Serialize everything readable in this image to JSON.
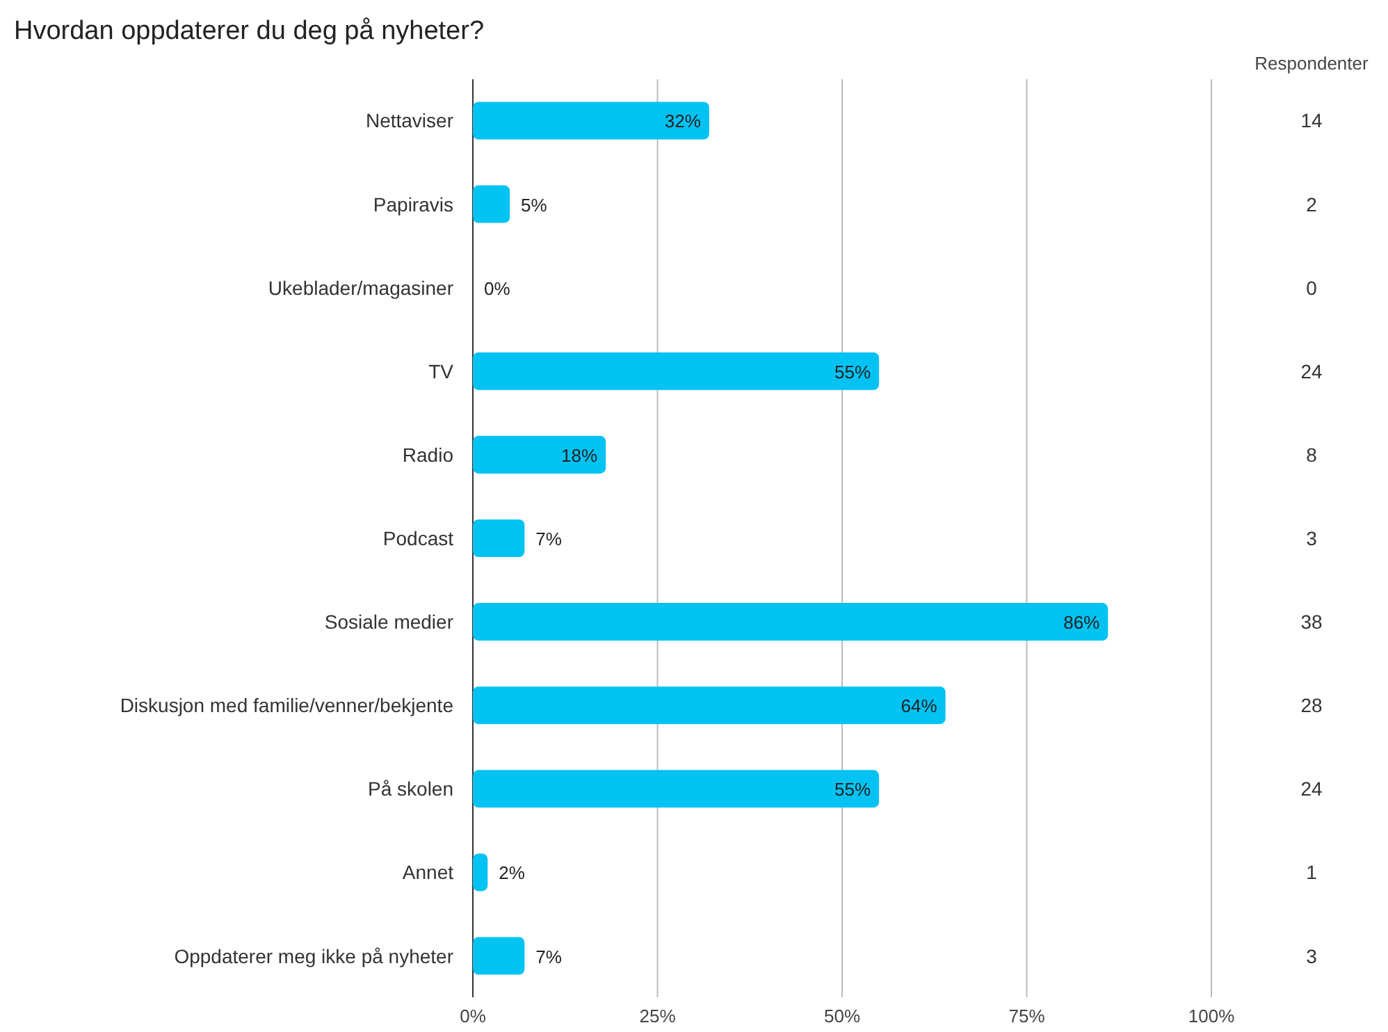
{
  "chart_data": {
    "type": "bar",
    "orientation": "horizontal",
    "title": "Hvordan oppdaterer du deg på nyheter?",
    "categories": [
      "Nettaviser",
      "Papiravis",
      "Ukeblader/magasiner",
      "TV",
      "Radio",
      "Podcast",
      "Sosiale medier",
      "Diskusjon med familie/venner/bekjente",
      "På skolen",
      "Annet",
      "Oppdaterer meg ikke på nyheter"
    ],
    "values": [
      32,
      5,
      0,
      55,
      18,
      7,
      86,
      64,
      55,
      2,
      7
    ],
    "value_labels": [
      "32%",
      "5%",
      "0%",
      "55%",
      "18%",
      "7%",
      "86%",
      "64%",
      "55%",
      "2%",
      "7%"
    ],
    "color": "#00c2f3",
    "xlim": [
      0,
      100
    ],
    "xticks": [
      {
        "value": 0,
        "label": "0%"
      },
      {
        "value": 25,
        "label": "25%"
      },
      {
        "value": 50,
        "label": "50%"
      },
      {
        "value": 75,
        "label": "75%"
      },
      {
        "value": 100,
        "label": "100%"
      }
    ],
    "grid": "x",
    "annotations": [
      "Respondenter",
      "14",
      "2",
      "0",
      "24",
      "8",
      "3",
      "38",
      "28",
      "24",
      "1",
      "3"
    ]
  }
}
